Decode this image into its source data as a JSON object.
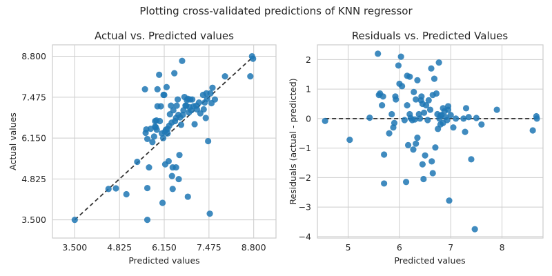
{
  "figure": {
    "suptitle": "Plotting cross-validated predictions of KNN regressor"
  },
  "chart_data": [
    {
      "type": "scatter",
      "title": "Actual vs. Predicted values",
      "xlabel": "Predicted values",
      "ylabel": "Actual values",
      "xlim": [
        2.84,
        9.46
      ],
      "ylim": [
        2.91,
        9.17
      ],
      "xticks": [
        3.5,
        4.825,
        6.15,
        7.475,
        8.8
      ],
      "yticks": [
        3.5,
        4.825,
        6.15,
        7.475,
        8.8
      ],
      "tick_labels": [
        "3.500",
        "4.825",
        "6.150",
        "7.475",
        "8.800"
      ],
      "grid": true,
      "reference_line": {
        "style": "dashed",
        "color": "#333333",
        "from": [
          3.5,
          3.5
        ],
        "to": [
          8.8,
          8.8
        ]
      },
      "marker_color": "#1f77b4",
      "points": [
        [
          3.5,
          3.5
        ]
      ]
    },
    {
      "type": "scatter",
      "title": "Residuals vs. Predicted Values",
      "xlabel": "Predicted values",
      "ylabel": "Residuals (actual - predicted)",
      "xlim": [
        4.4,
        8.8
      ],
      "ylim": [
        -4.05,
        2.5
      ],
      "xticks": [
        5,
        6,
        7,
        8
      ],
      "xtick_labels": [
        "5",
        "6",
        "7",
        "8"
      ],
      "yticks": [
        -4,
        -3,
        -2,
        -1,
        0,
        1,
        2
      ],
      "ytick_labels": [
        "−4",
        "−3",
        "−2",
        "−1",
        "0",
        "1",
        "2"
      ],
      "grid": true,
      "reference_line": {
        "style": "dashed",
        "color": "#333333",
        "from": [
          4.55,
          0
        ],
        "to": [
          8.7,
          0
        ]
      },
      "marker_color": "#1f77b4",
      "points": [
        [
          4.55,
          -0.08
        ],
        [
          5.03,
          -0.72
        ],
        [
          5.42,
          0.03
        ],
        [
          5.58,
          2.2
        ],
        [
          5.6,
          0.8
        ],
        [
          5.62,
          0.85
        ],
        [
          5.66,
          0.45
        ],
        [
          5.68,
          0.75
        ],
        [
          5.7,
          -1.22
        ],
        [
          5.7,
          -2.2
        ],
        [
          5.8,
          -0.5
        ],
        [
          5.85,
          0.15
        ],
        [
          5.88,
          -0.3
        ],
        [
          5.9,
          -0.15
        ],
        [
          5.92,
          0.75
        ],
        [
          5.93,
          0.65
        ],
        [
          5.98,
          1.8
        ],
        [
          6.0,
          1.18
        ],
        [
          6.03,
          2.1
        ],
        [
          6.05,
          1.1
        ],
        [
          6.1,
          -0.05
        ],
        [
          6.13,
          -2.15
        ],
        [
          6.15,
          0.45
        ],
        [
          6.15,
          1.45
        ],
        [
          6.17,
          -0.9
        ],
        [
          6.2,
          1.42
        ],
        [
          6.2,
          0.15
        ],
        [
          6.22,
          0.02
        ],
        [
          6.25,
          -0.05
        ],
        [
          6.27,
          -1.05
        ],
        [
          6.28,
          0.9
        ],
        [
          6.3,
          -0.03
        ],
        [
          6.32,
          0.65
        ],
        [
          6.32,
          -0.85
        ],
        [
          6.35,
          1.3
        ],
        [
          6.35,
          -0.65
        ],
        [
          6.38,
          0.15
        ],
        [
          6.4,
          0.0
        ],
        [
          6.42,
          0.62
        ],
        [
          6.43,
          0.75
        ],
        [
          6.45,
          0.5
        ],
        [
          6.45,
          -1.55
        ],
        [
          6.47,
          -2.05
        ],
        [
          6.48,
          0.2
        ],
        [
          6.5,
          -1.25
        ],
        [
          6.52,
          0.45
        ],
        [
          6.55,
          -0.05
        ],
        [
          6.57,
          0.62
        ],
        [
          6.6,
          0.3
        ],
        [
          6.62,
          1.7
        ],
        [
          6.63,
          -1.45
        ],
        [
          6.65,
          0.8
        ],
        [
          6.65,
          -1.85
        ],
        [
          6.68,
          1.35
        ],
        [
          6.7,
          -0.98
        ],
        [
          6.72,
          0.85
        ],
        [
          6.74,
          0.15
        ],
        [
          6.75,
          -0.35
        ],
        [
          6.77,
          1.9
        ],
        [
          6.78,
          0.0
        ],
        [
          6.8,
          0.1
        ],
        [
          6.8,
          -0.2
        ],
        [
          6.82,
          0.12
        ],
        [
          6.85,
          0.35
        ],
        [
          6.85,
          -0.15
        ],
        [
          6.88,
          0.25
        ],
        [
          6.9,
          0.05
        ],
        [
          6.93,
          -0.05
        ],
        [
          6.95,
          0.42
        ],
        [
          6.95,
          0.3
        ],
        [
          6.97,
          -2.78
        ],
        [
          7.0,
          0.12
        ],
        [
          7.05,
          -0.3
        ],
        [
          7.1,
          0.0
        ],
        [
          7.25,
          0.0
        ],
        [
          7.28,
          -0.45
        ],
        [
          7.3,
          0.35
        ],
        [
          7.35,
          0.05
        ],
        [
          7.4,
          -1.38
        ],
        [
          7.47,
          -3.75
        ],
        [
          7.5,
          0.02
        ],
        [
          7.6,
          -0.2
        ],
        [
          7.9,
          0.3
        ],
        [
          8.6,
          -0.4
        ],
        [
          8.67,
          0.08
        ],
        [
          8.68,
          0.0
        ]
      ]
    }
  ]
}
